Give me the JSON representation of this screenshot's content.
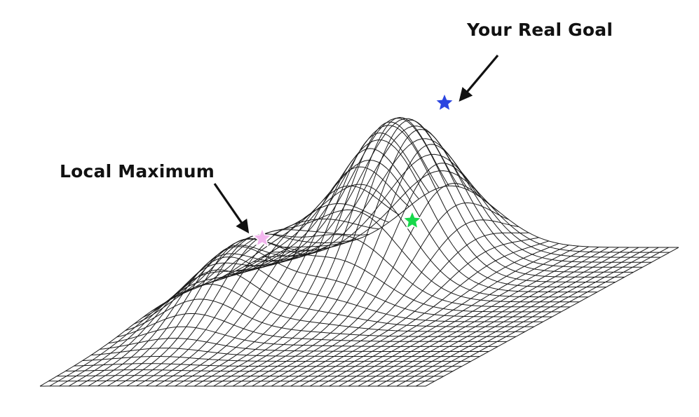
{
  "annotations": {
    "real_goal": "Your Real Goal",
    "local_maximum": "Local Maximum"
  },
  "surface": {
    "type": "wireframe",
    "line_color": "#1a1a1a",
    "background_color": "#ffffff",
    "peaks": [
      {
        "name": "main-peak",
        "relative_height": 1.0
      },
      {
        "name": "local-peak",
        "relative_height": 0.42
      }
    ]
  },
  "markers": [
    {
      "name": "global-max-star",
      "color": "#2b45e0",
      "location": "top of main peak"
    },
    {
      "name": "local-max-star",
      "color": "#f3b6ef",
      "location": "top of local peak"
    },
    {
      "name": "current-position-star",
      "color": "#16d84a",
      "location": "slope of main peak"
    }
  ],
  "arrow_color": "#111111"
}
